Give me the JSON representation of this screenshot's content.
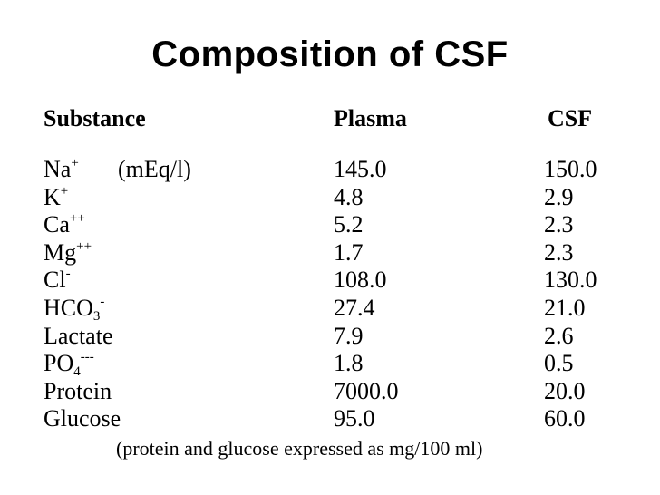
{
  "title": "Composition of CSF",
  "headers": {
    "substance": "Substance",
    "plasma": "Plasma",
    "csf": "CSF"
  },
  "rows": [
    {
      "base": "Na",
      "sup": "+",
      "sub": "",
      "unit": "(mEq/l)",
      "plasma": "145.0",
      "csf": "150.0"
    },
    {
      "base": "K",
      "sup": "+",
      "sub": "",
      "unit": "",
      "plasma": "4.8",
      "csf": "2.9"
    },
    {
      "base": "Ca",
      "sup": "++",
      "sub": "",
      "unit": "",
      "plasma": "5.2",
      "csf": "2.3"
    },
    {
      "base": "Mg",
      "sup": "++",
      "sub": "",
      "unit": "",
      "plasma": "1.7",
      "csf": "2.3"
    },
    {
      "base": "Cl",
      "sup": "-",
      "sub": "",
      "unit": "",
      "plasma": "108.0",
      "csf": "130.0"
    },
    {
      "base": "HCO",
      "sup": "-",
      "sub": "3",
      "unit": "",
      "plasma": "27.4",
      "csf": "21.0"
    },
    {
      "base": "Lactate",
      "sup": "",
      "sub": "",
      "unit": "",
      "plasma": "7.9",
      "csf": "2.6"
    },
    {
      "base": "PO",
      "sup": "---",
      "sub": "4",
      "unit": "",
      "plasma": "1.8",
      "csf": "0.5"
    },
    {
      "base": "Protein",
      "sup": "",
      "sub": "",
      "unit": "",
      "plasma": "7000.0",
      "csf": "20.0"
    },
    {
      "base": "Glucose",
      "sup": "",
      "sub": "",
      "unit": "",
      "plasma": "95.0",
      "csf": "60.0"
    }
  ],
  "footnote": "(protein and glucose expressed as mg/100 ml)"
}
